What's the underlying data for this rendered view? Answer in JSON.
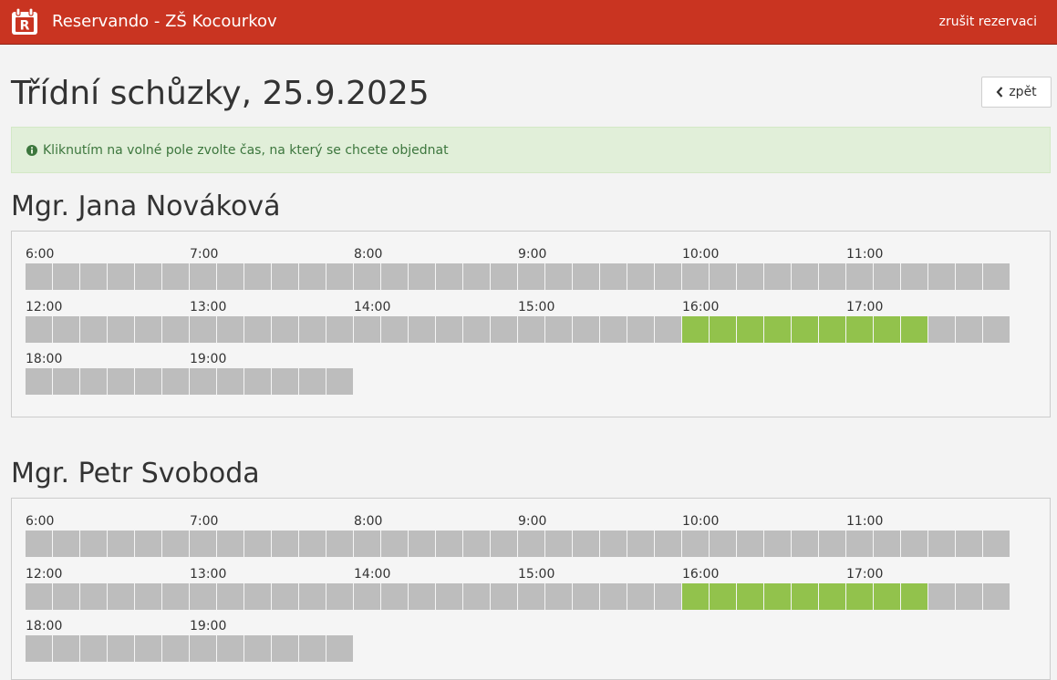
{
  "app": {
    "title": "Reservando - ZŠ Kocourkov",
    "logo_letter": "R",
    "cancel_link": "zrušit rezervaci"
  },
  "page": {
    "title": "Třídní schůzky, 25.9.2025",
    "back_label": "zpět",
    "info_text": "Kliknutím na volné pole zvolte čas, na který se chcete objednat"
  },
  "colors": {
    "header": "#c93421",
    "slot_taken": "#bdbdbd",
    "slot_free": "#92c24c",
    "info_bg": "#e1efd9",
    "info_text": "#3c763d"
  },
  "teachers": [
    {
      "name": "Mgr. Jana Nováková",
      "rows": [
        {
          "hours": [
            "6:00",
            "7:00",
            "8:00",
            "9:00",
            "10:00",
            "11:00"
          ],
          "slots": "000000000000000000000000000000000000"
        },
        {
          "hours": [
            "12:00",
            "13:00",
            "14:00",
            "15:00",
            "16:00",
            "17:00"
          ],
          "slots": "000000000000000000000000111111111000"
        },
        {
          "hours": [
            "18:00",
            "19:00"
          ],
          "slots": "000000000000"
        }
      ]
    },
    {
      "name": "Mgr. Petr Svoboda",
      "rows": [
        {
          "hours": [
            "6:00",
            "7:00",
            "8:00",
            "9:00",
            "10:00",
            "11:00"
          ],
          "slots": "000000000000000000000000000000000000"
        },
        {
          "hours": [
            "12:00",
            "13:00",
            "14:00",
            "15:00",
            "16:00",
            "17:00"
          ],
          "slots": "000000000000000000000000111111111000"
        },
        {
          "hours": [
            "18:00",
            "19:00"
          ],
          "slots": "000000000000"
        }
      ]
    }
  ]
}
